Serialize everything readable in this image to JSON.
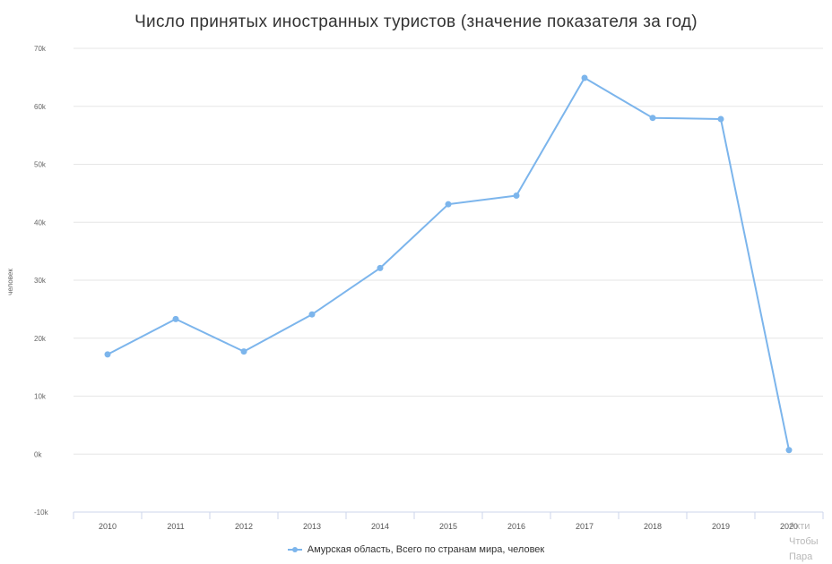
{
  "chart_data": {
    "type": "line",
    "title": "Число принятых иностранных туристов (значение показателя за год)",
    "ylabel": "человек",
    "xlabel": "",
    "x": [
      "2010",
      "2011",
      "2012",
      "2013",
      "2014",
      "2015",
      "2016",
      "2017",
      "2018",
      "2019",
      "2020"
    ],
    "ylim": [
      -10000,
      70000
    ],
    "yticks": [
      -10000,
      0,
      10000,
      20000,
      30000,
      40000,
      50000,
      60000,
      70000
    ],
    "ytick_labels": [
      "-10k",
      "0k",
      "10k",
      "20k",
      "30k",
      "40k",
      "50k",
      "60k",
      "70k"
    ],
    "grid": true,
    "legend_position": "bottom-center",
    "series": [
      {
        "name": "Амурская область, Всего по странам мира, человек",
        "color": "#7cb5ec",
        "values": [
          17200,
          23300,
          17700,
          24100,
          32100,
          43100,
          44600,
          64900,
          58000,
          57800,
          700
        ]
      }
    ]
  },
  "watermark": {
    "lines": [
      "Акти",
      "Чтобы",
      "Пара"
    ]
  }
}
